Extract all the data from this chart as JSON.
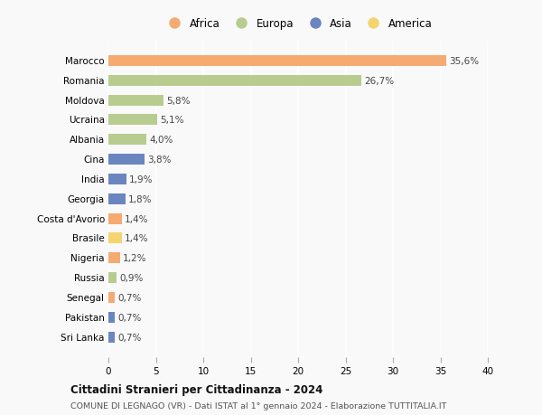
{
  "countries": [
    "Marocco",
    "Romania",
    "Moldova",
    "Ucraina",
    "Albania",
    "Cina",
    "India",
    "Georgia",
    "Costa d'Avorio",
    "Brasile",
    "Nigeria",
    "Russia",
    "Senegal",
    "Pakistan",
    "Sri Lanka"
  ],
  "values": [
    35.6,
    26.7,
    5.8,
    5.1,
    4.0,
    3.8,
    1.9,
    1.8,
    1.4,
    1.4,
    1.2,
    0.9,
    0.7,
    0.7,
    0.7
  ],
  "labels": [
    "35,6%",
    "26,7%",
    "5,8%",
    "5,1%",
    "4,0%",
    "3,8%",
    "1,9%",
    "1,8%",
    "1,4%",
    "1,4%",
    "1,2%",
    "0,9%",
    "0,7%",
    "0,7%",
    "0,7%"
  ],
  "continents": [
    "Africa",
    "Europa",
    "Europa",
    "Europa",
    "Europa",
    "Asia",
    "Asia",
    "Asia",
    "Africa",
    "America",
    "Africa",
    "Europa",
    "Africa",
    "Asia",
    "Asia"
  ],
  "colors": {
    "Africa": "#F5AA72",
    "Europa": "#B8CC90",
    "Asia": "#6B85C0",
    "America": "#F5D470"
  },
  "legend_order": [
    "Africa",
    "Europa",
    "Asia",
    "America"
  ],
  "xlim": [
    0,
    40
  ],
  "xticks": [
    0,
    5,
    10,
    15,
    20,
    25,
    30,
    35,
    40
  ],
  "title1": "Cittadini Stranieri per Cittadinanza - 2024",
  "title2": "COMUNE DI LEGNAGO (VR) - Dati ISTAT al 1° gennaio 2024 - Elaborazione TUTTITALIA.IT",
  "bg_color": "#f9f9f9",
  "grid_color": "#ffffff",
  "bar_height": 0.55
}
